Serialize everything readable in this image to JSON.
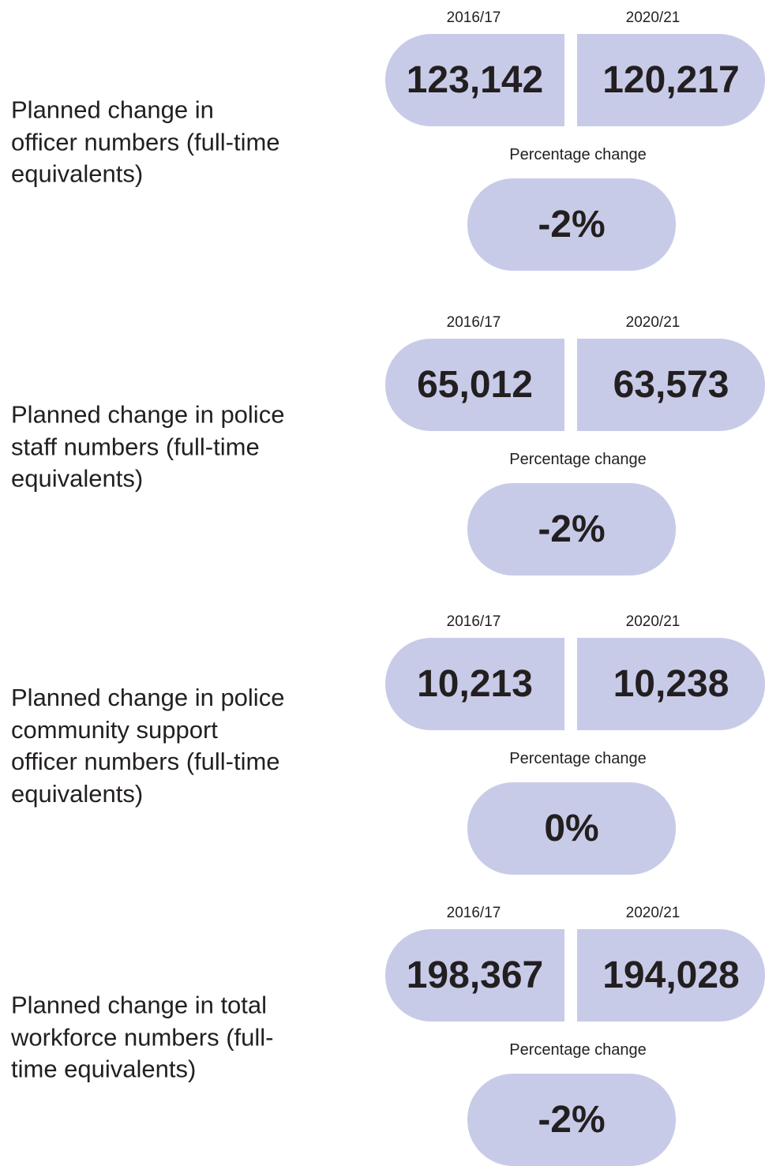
{
  "sections": [
    {
      "label_lines": [
        "Planned change in",
        "officer numbers (full-time",
        "equivalents)"
      ],
      "years": [
        "2016/17",
        "2020/21"
      ],
      "values": [
        "123,142",
        "120,217"
      ],
      "percentage_label": "Percentage change",
      "percentage_value": "-2%"
    },
    {
      "label_lines": [
        "Planned change in police",
        "staff numbers (full-time",
        "equivalents)"
      ],
      "years": [
        "2016/17",
        "2020/21"
      ],
      "values": [
        "65,012",
        "63,573"
      ],
      "percentage_label": "Percentage change",
      "percentage_value": "-2%"
    },
    {
      "label_lines": [
        "Planned change in police",
        "community support",
        "officer numbers (full-time",
        "equivalents)"
      ],
      "years": [
        "2016/17",
        "2020/21"
      ],
      "values": [
        "10,213",
        "10,238"
      ],
      "percentage_label": "Percentage change",
      "percentage_value": "0%"
    },
    {
      "label_lines": [
        "Planned change in total",
        "workforce numbers (full-",
        "time equivalents)"
      ],
      "years": [
        "2016/17",
        "2020/21"
      ],
      "values": [
        "198,367",
        "194,028"
      ],
      "percentage_label": "Percentage change",
      "percentage_value": "-2%"
    }
  ]
}
